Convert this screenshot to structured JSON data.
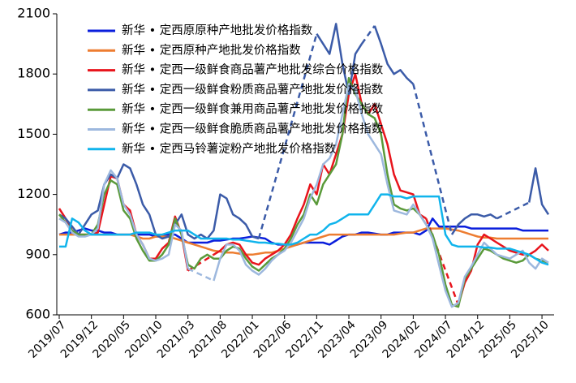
{
  "chart_data": {
    "type": "line",
    "categories": [
      "2019/07",
      null,
      null,
      null,
      null,
      "2019/12",
      null,
      null,
      null,
      null,
      "2020/05",
      null,
      null,
      null,
      null,
      "2020/10",
      null,
      null,
      null,
      null,
      "2021/03",
      null,
      null,
      null,
      null,
      "2021/08",
      null,
      null,
      null,
      null,
      "2022/01",
      null,
      null,
      null,
      null,
      "2022/06",
      null,
      null,
      null,
      null,
      "2022/11",
      null,
      null,
      null,
      null,
      "2023/04",
      null,
      null,
      null,
      null,
      "2023/09",
      null,
      null,
      null,
      null,
      "2024/02",
      null,
      null,
      null,
      null,
      "2024/07",
      null,
      null,
      null,
      null,
      "2024/12",
      null,
      null,
      null,
      null,
      "2025/05",
      null,
      null,
      null,
      null,
      "2025/10",
      null
    ],
    "ylim": [
      600,
      2100
    ],
    "yticks": [
      600,
      900,
      1200,
      1500,
      1800,
      2100
    ],
    "legend": "upper left",
    "series": [
      {
        "name": "新华 • 定西原原种产地批发价格指数",
        "color": "#0a1edc",
        "values": [
          1000,
          1010,
          1010,
          1020,
          1030,
          1020,
          1020,
          1010,
          1010,
          1000,
          1000,
          1000,
          1000,
          1000,
          1000,
          990,
          990,
          1000,
          1000,
          980,
          960,
          960,
          960,
          960,
          970,
          970,
          975,
          980,
          980,
          985,
          990,
          985,
          980,
          960,
          950,
          950,
          950,
          950,
          960,
          960,
          960,
          960,
          950,
          970,
          990,
          1000,
          1000,
          1010,
          1010,
          1005,
          1000,
          1000,
          1010,
          1010,
          1010,
          1010,
          1000,
          1020,
          1080,
          1040,
          1040,
          1040,
          1040,
          1040,
          1030,
          1030,
          1030,
          1030,
          1030,
          1030,
          1030,
          1030,
          1020,
          1020,
          1020,
          1020,
          1020
        ]
      },
      {
        "name": "新华 • 定西原种产地批发价格指数",
        "color": "#ed7d31",
        "values": [
          1000,
          1000,
          1000,
          1000,
          1000,
          1000,
          1000,
          1000,
          1000,
          1000,
          1000,
          1000,
          990,
          980,
          980,
          990,
          990,
          990,
          980,
          970,
          960,
          950,
          940,
          930,
          920,
          915,
          910,
          910,
          905,
          900,
          900,
          905,
          910,
          910,
          920,
          930,
          940,
          950,
          960,
          970,
          980,
          990,
          1000,
          1000,
          1000,
          1000,
          1000,
          1000,
          1000,
          1000,
          1000,
          1000,
          1000,
          1005,
          1010,
          1010,
          1020,
          1030,
          1030,
          1030,
          1030,
          1025,
          1020,
          1010,
          1000,
          990,
          985,
          985,
          980,
          980,
          980,
          980,
          980,
          980,
          980,
          980,
          980
        ]
      },
      {
        "name": "新华 • 定西一级鲜食商品薯产地批发综合价格指数",
        "color": "#e8141c",
        "values": [
          1130,
          1080,
          1020,
          1000,
          1000,
          1000,
          1010,
          1150,
          1290,
          1280,
          1150,
          1120,
          1000,
          950,
          880,
          880,
          930,
          960,
          1090,
          1000,
          820,
          null,
          null,
          null,
          900,
          920,
          950,
          960,
          950,
          900,
          860,
          850,
          880,
          900,
          920,
          950,
          1000,
          1080,
          1150,
          1250,
          1200,
          1350,
          1300,
          1400,
          1500,
          1700,
          1800,
          1650,
          1600,
          1650,
          1550,
          1450,
          1300,
          1220,
          1210,
          1200,
          1100,
          1080,
          null,
          null,
          null,
          null,
          650,
          760,
          820,
          950,
          1000,
          980,
          960,
          940,
          920,
          910,
          900,
          900,
          920,
          950,
          920
        ]
      },
      {
        "name": "新华 • 定西一级鲜食粉质商品薯产地批发价格指数",
        "color": "#3b5ba8",
        "values": [
          1100,
          1080,
          1040,
          1000,
          1050,
          1100,
          1120,
          1250,
          1300,
          1280,
          1350,
          1330,
          1250,
          1150,
          1100,
          1000,
          980,
          990,
          1050,
          1100,
          1000,
          980,
          1000,
          980,
          1020,
          1200,
          1180,
          1100,
          1080,
          1050,
          990,
          980,
          null,
          null,
          null,
          null,
          null,
          null,
          null,
          null,
          2000,
          1950,
          1900,
          2050,
          1850,
          1700,
          1900,
          1950,
          null,
          2040,
          1950,
          1850,
          1800,
          1820,
          1780,
          1750,
          null,
          null,
          null,
          null,
          null,
          1000,
          1050,
          1080,
          1100,
          1100,
          1090,
          1100,
          1080,
          null,
          null,
          null,
          null,
          1160,
          1330,
          1150,
          1100
        ]
      },
      {
        "name": "新华 • 定西一级鲜食兼用商品薯产地批发价格指数",
        "color": "#5a9a3a",
        "values": [
          1100,
          1060,
          1020,
          1000,
          1000,
          1000,
          1050,
          1200,
          1270,
          1250,
          1120,
          1080,
          980,
          920,
          870,
          870,
          900,
          950,
          1080,
          1000,
          850,
          830,
          880,
          900,
          880,
          880,
          920,
          940,
          930,
          880,
          840,
          820,
          850,
          880,
          900,
          930,
          980,
          1050,
          1100,
          1200,
          1150,
          1250,
          1300,
          1350,
          1500,
          1780,
          1700,
          1650,
          1600,
          1580,
          1500,
          1300,
          1150,
          1130,
          1120,
          1130,
          1100,
          1050,
          1000,
          900,
          750,
          650,
          640,
          780,
          830,
          880,
          930,
          920,
          900,
          880,
          870,
          860,
          870,
          900,
          880,
          870,
          860
        ]
      },
      {
        "name": "新华 • 定西一级鲜食脆质商品薯产地批发价格指数",
        "color": "#9db8de",
        "values": [
          1080,
          1060,
          1010,
          990,
          990,
          1000,
          1030,
          1250,
          1320,
          1280,
          1150,
          1100,
          1000,
          950,
          880,
          870,
          880,
          900,
          1050,
          1020,
          830,
          null,
          null,
          null,
          770,
          880,
          950,
          950,
          920,
          850,
          820,
          800,
          830,
          870,
          900,
          920,
          960,
          1020,
          1080,
          1180,
          1250,
          1350,
          1380,
          1450,
          1600,
          1750,
          1720,
          1600,
          1500,
          1450,
          1400,
          1250,
          1120,
          1110,
          1100,
          1150,
          1100,
          1050,
          980,
          850,
          720,
          640,
          660,
          790,
          840,
          900,
          960,
          930,
          900,
          890,
          880,
          900,
          920,
          860,
          830,
          880,
          860
        ]
      },
      {
        "name": "新华 • 定西马铃薯淀粉产地批发价格指数",
        "color": "#10b4ec",
        "values": [
          940,
          940,
          1080,
          1060,
          1020,
          1000,
          1000,
          1000,
          1000,
          1000,
          1000,
          1000,
          1010,
          1010,
          1010,
          1000,
          1000,
          1010,
          1020,
          1020,
          1020,
          1000,
          980,
          980,
          980,
          980,
          980,
          975,
          975,
          970,
          965,
          960,
          960,
          955,
          955,
          950,
          950,
          960,
          980,
          1000,
          1000,
          1020,
          1050,
          1060,
          1080,
          1100,
          1100,
          1100,
          1100,
          1150,
          1200,
          1200,
          1190,
          1190,
          1180,
          1190,
          1190,
          1190,
          1190,
          1190,
          1000,
          950,
          940,
          940,
          940,
          940,
          935,
          935,
          930,
          930,
          930,
          920,
          910,
          900,
          880,
          860,
          850
        ]
      }
    ]
  }
}
